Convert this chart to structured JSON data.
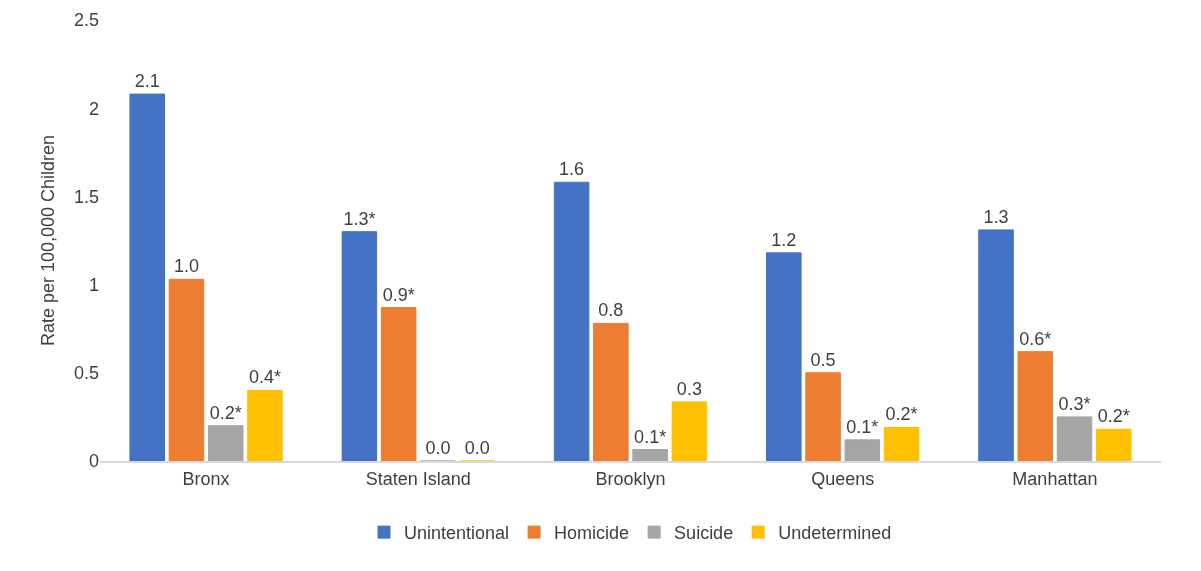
{
  "chart_data": {
    "type": "bar",
    "ylabel": "Rate per 100,000 Children",
    "categories": [
      "Bronx",
      "Staten Island",
      "Brooklyn",
      "Queens",
      "Manhattan"
    ],
    "series": [
      {
        "name": "Unintentional",
        "color": "#4472c4",
        "values": [
          2.08,
          1.3,
          1.58,
          1.18,
          1.31
        ],
        "value_labels": [
          "2.1",
          "1.3*",
          "1.6",
          "1.2",
          "1.3"
        ]
      },
      {
        "name": "Homicide",
        "color": "#ed7d31",
        "values": [
          1.03,
          0.87,
          0.78,
          0.5,
          0.62
        ],
        "value_labels": [
          "1.0",
          "0.9*",
          "0.8",
          "0.5",
          "0.6*"
        ]
      },
      {
        "name": "Suicide",
        "color": "#a5a5a5",
        "values": [
          0.2,
          0,
          0.065,
          0.12,
          0.25
        ],
        "value_labels": [
          "0.2*",
          "0.0",
          "0.1*",
          "0.1*",
          "0.3*"
        ]
      },
      {
        "name": "Undetermined",
        "color": "#ffc000",
        "values": [
          0.4,
          0,
          0.335,
          0.19,
          0.18
        ],
        "value_labels": [
          "0.4*",
          "0.0",
          "0.3",
          "0.2*",
          "0.2*"
        ]
      }
    ],
    "ylim": [
      0,
      2.5
    ],
    "yticks": [
      0,
      0.5,
      1,
      1.5,
      2,
      2.5
    ],
    "grid": false,
    "legend": "bottom"
  }
}
